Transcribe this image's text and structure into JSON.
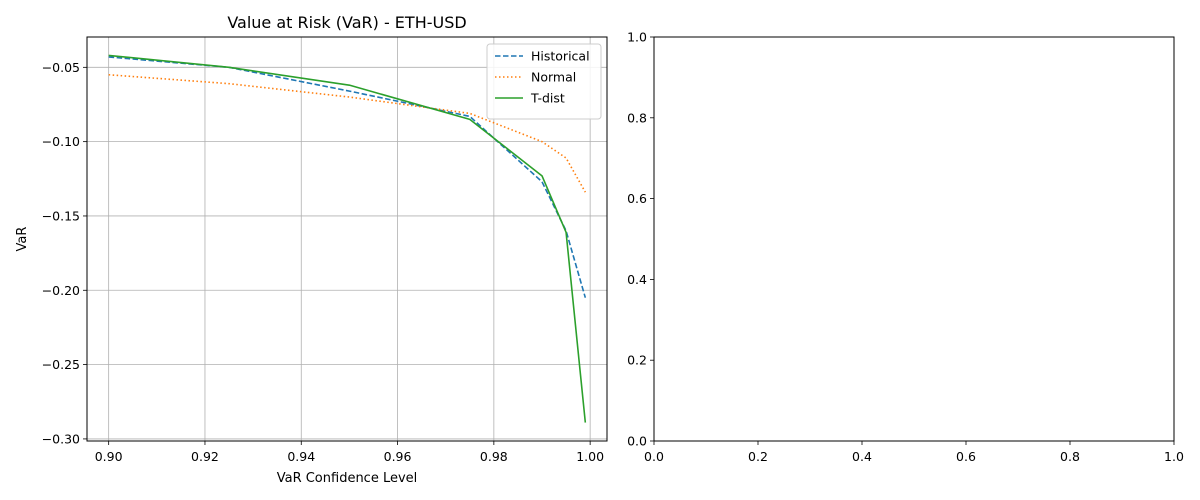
{
  "chart_data": [
    {
      "type": "line",
      "title": "Value at Risk (VaR) - ETH-USD",
      "xlabel": "VaR Confidence Level",
      "ylabel": "VaR",
      "x": [
        0.9,
        0.925,
        0.95,
        0.975,
        0.99,
        0.995,
        0.999
      ],
      "series": [
        {
          "name": "Historical",
          "values": [
            -0.043,
            -0.05,
            -0.066,
            -0.083,
            -0.127,
            -0.16,
            -0.205
          ],
          "color": "#1f77b4",
          "style": "dashed"
        },
        {
          "name": "Normal",
          "values": [
            -0.055,
            -0.061,
            -0.07,
            -0.081,
            -0.1,
            -0.111,
            -0.134
          ],
          "color": "#ff7f0e",
          "style": "dotted"
        },
        {
          "name": "T-dist",
          "values": [
            -0.042,
            -0.05,
            -0.062,
            -0.085,
            -0.123,
            -0.161,
            -0.289
          ],
          "color": "#2ca02c",
          "style": "solid"
        }
      ],
      "xlim": [
        0.8955,
        1.0035
      ],
      "ylim": [
        -0.3014,
        -0.0296
      ],
      "xticks": [
        0.9,
        0.92,
        0.94,
        0.96,
        0.98,
        1.0
      ],
      "xtick_labels": [
        "0.90",
        "0.92",
        "0.94",
        "0.96",
        "0.98",
        "1.00"
      ],
      "yticks": [
        -0.05,
        -0.1,
        -0.15,
        -0.2,
        -0.25,
        -0.3
      ],
      "ytick_labels": [
        "−0.05",
        "−0.10",
        "−0.15",
        "−0.20",
        "−0.25",
        "−0.30"
      ],
      "grid": true,
      "legend_position": "top-right"
    },
    {
      "type": "line",
      "title": "",
      "xlabel": "",
      "ylabel": "",
      "series": [],
      "xlim": [
        0.0,
        1.0
      ],
      "ylim": [
        0.0,
        1.0
      ],
      "xticks": [
        0.0,
        0.2,
        0.4,
        0.6,
        0.8,
        1.0
      ],
      "xtick_labels": [
        "0.0",
        "0.2",
        "0.4",
        "0.6",
        "0.8",
        "1.0"
      ],
      "yticks": [
        0.0,
        0.2,
        0.4,
        0.6,
        0.8,
        1.0
      ],
      "ytick_labels": [
        "0.0",
        "0.2",
        "0.4",
        "0.6",
        "0.8",
        "1.0"
      ],
      "grid": false
    }
  ]
}
